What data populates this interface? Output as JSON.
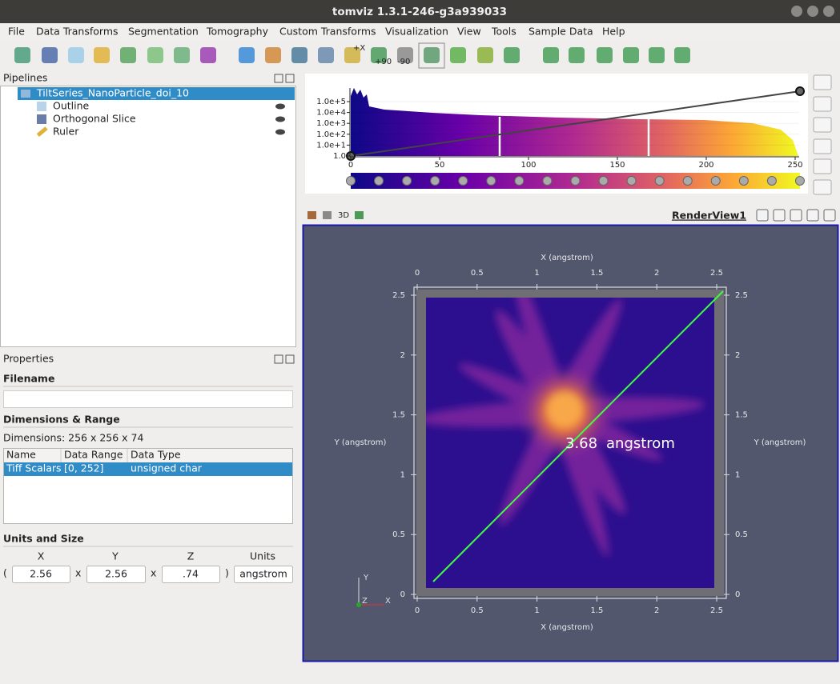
{
  "window": {
    "title": "tomviz 1.3.1-246-g3a939033"
  },
  "menu": [
    "File",
    "Data Transforms",
    "Segmentation",
    "Tomography",
    "Custom Transforms",
    "Visualization",
    "View",
    "Tools",
    "Sample Data",
    "Help"
  ],
  "toolbar": {
    "labels": [
      "+X",
      "+90",
      "-90"
    ]
  },
  "pipelines": {
    "title": "Pipelines",
    "items": [
      "TiltSeries_NanoParticle_doi_10",
      "Outline",
      "Orthogonal Slice",
      "Ruler"
    ]
  },
  "color_map": {
    "log_scale": true,
    "xlim": [
      0,
      250
    ],
    "xticks": [
      0,
      50,
      100,
      150,
      200,
      250
    ],
    "yticks": [
      {
        "value": 100000,
        "label": "1.0e+5"
      },
      {
        "value": 10000,
        "label": "1.0e+4"
      },
      {
        "value": 1000,
        "label": "1.0e+3"
      },
      {
        "value": 100,
        "label": "1.0e+2"
      },
      {
        "value": 10,
        "label": "1.0e+1"
      },
      {
        "value": 1,
        "label": "1.0"
      }
    ]
  },
  "properties": {
    "title": "Properties",
    "filename_label": "Filename",
    "dimensions_section": "Dimensions & Range",
    "dimensions": "Dimensions: 256 x 256 x 74",
    "table": {
      "headers": [
        "Name",
        "Data Range",
        "Data Type"
      ],
      "rows": [
        [
          "Tiff Scalars",
          "[0, 252]",
          "unsigned char"
        ]
      ]
    },
    "units_section": "Units and Size",
    "size_headers": [
      "X",
      "Y",
      "Z",
      "Units"
    ],
    "size_separators": [
      "(",
      "x",
      "x",
      ")"
    ],
    "size_values": [
      "2.56",
      "2.56",
      ".74",
      "angstrom"
    ]
  },
  "render_view": {
    "toolbar_label": "3D",
    "name": "RenderView1",
    "x_axis_label": "X (angstrom)",
    "y_axis_label": "Y (angstrom)",
    "ticks": [
      0,
      0.5,
      1,
      1.5,
      2,
      2.5
    ],
    "ruler": {
      "length": 3.68,
      "unit": "angstrom"
    },
    "triad": [
      "Y",
      "Z",
      "X"
    ]
  }
}
